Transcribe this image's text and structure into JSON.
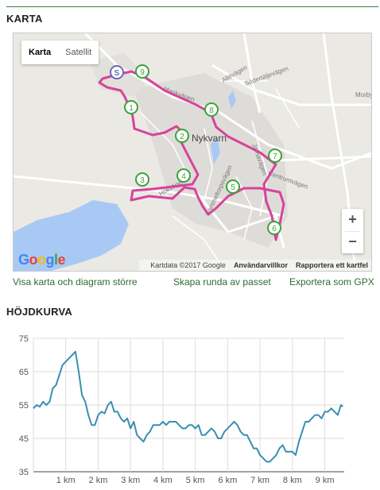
{
  "map_section": {
    "title": "KARTA",
    "map_type": {
      "map": "Karta",
      "satellite": "Satellit"
    },
    "zoom": {
      "in": "+",
      "out": "−"
    },
    "footer": {
      "data": "Kartdata ©2017 Google",
      "terms": "Användarvillkor",
      "report": "Rapportera ett kartfel"
    },
    "logo": "Google",
    "place_labels": {
      "town": "Nykvarn",
      "road1": "Allévägen",
      "road2": "Södertäljevägen",
      "road3": "Centrumvägen",
      "road4": "Hökvägen",
      "road5": "Jarnavägen",
      "road6": "Sammeltorpsvägen",
      "road7": "Morby",
      "road8": "Mankvägen"
    },
    "markers": [
      "S",
      "1",
      "2",
      "3",
      "4",
      "5",
      "6",
      "7",
      "8",
      "9"
    ],
    "colors": {
      "route": "#d6439a",
      "marker": "#3aa33a",
      "water": "#a9c9f5",
      "land": "#ebe9e4"
    }
  },
  "links": {
    "bigger": "Visa karta och diagram större",
    "round": "Skapa runda av passet",
    "gpx": "Exportera som GPX"
  },
  "elevation_section": {
    "title": "HÖJDKURVA"
  },
  "chart_data": {
    "type": "line",
    "title": "",
    "xlabel": "",
    "ylabel": "",
    "xlim": [
      0,
      9.6
    ],
    "ylim": [
      35,
      75
    ],
    "yticks": [
      "75",
      "65",
      "55",
      "45",
      "35"
    ],
    "xticks": [
      "1 km",
      "2 km",
      "3 km",
      "4 km",
      "5 km",
      "6 km",
      "7 km",
      "8 km",
      "9 km"
    ],
    "grid": true,
    "line_color": "#3a8fb0",
    "series": [
      {
        "x": [
          0,
          0.1,
          0.2,
          0.3,
          0.4,
          0.5,
          0.6,
          0.7,
          0.8,
          0.9,
          1.0,
          1.1,
          1.2,
          1.3,
          1.4,
          1.5,
          1.6,
          1.7,
          1.8,
          1.9,
          2.0,
          2.1,
          2.2,
          2.3,
          2.4,
          2.5,
          2.6,
          2.7,
          2.8,
          2.9,
          3.0,
          3.1,
          3.2,
          3.3,
          3.4,
          3.5,
          3.6,
          3.7,
          3.8,
          3.9,
          4.0,
          4.1,
          4.2,
          4.3,
          4.4,
          4.5,
          4.6,
          4.7,
          4.8,
          4.9,
          5.0,
          5.1,
          5.2,
          5.3,
          5.4,
          5.5,
          5.6,
          5.7,
          5.8,
          5.9,
          6.0,
          6.1,
          6.2,
          6.3,
          6.4,
          6.5,
          6.6,
          6.7,
          6.8,
          6.9,
          7.0,
          7.1,
          7.2,
          7.3,
          7.4,
          7.5,
          7.6,
          7.7,
          7.8,
          7.9,
          8.0,
          8.1,
          8.2,
          8.3,
          8.4,
          8.5,
          8.6,
          8.7,
          8.8,
          8.9,
          9.0,
          9.1,
          9.2,
          9.3,
          9.4,
          9.5,
          9.55
        ],
        "y": [
          54,
          55,
          54.5,
          56,
          55,
          56,
          60,
          61,
          64,
          67,
          68,
          69,
          70,
          71,
          65,
          58,
          56,
          52,
          49,
          49,
          52,
          53,
          52.5,
          55,
          56,
          53,
          53,
          51,
          50,
          51,
          48,
          50,
          46,
          45,
          44,
          46,
          47,
          49,
          49,
          49,
          50,
          49,
          50,
          50,
          50,
          49,
          48,
          48,
          49,
          49,
          48,
          49,
          46,
          46,
          47,
          48,
          47,
          45,
          45,
          47,
          48,
          49,
          50,
          49,
          47,
          46,
          46,
          44,
          42,
          42,
          40,
          39,
          38,
          38,
          39,
          40,
          42,
          43,
          41,
          41,
          41,
          40,
          44,
          47,
          50,
          50,
          51,
          52,
          52,
          51,
          53,
          53,
          54,
          53,
          52,
          55,
          54.5
        ]
      }
    ]
  }
}
